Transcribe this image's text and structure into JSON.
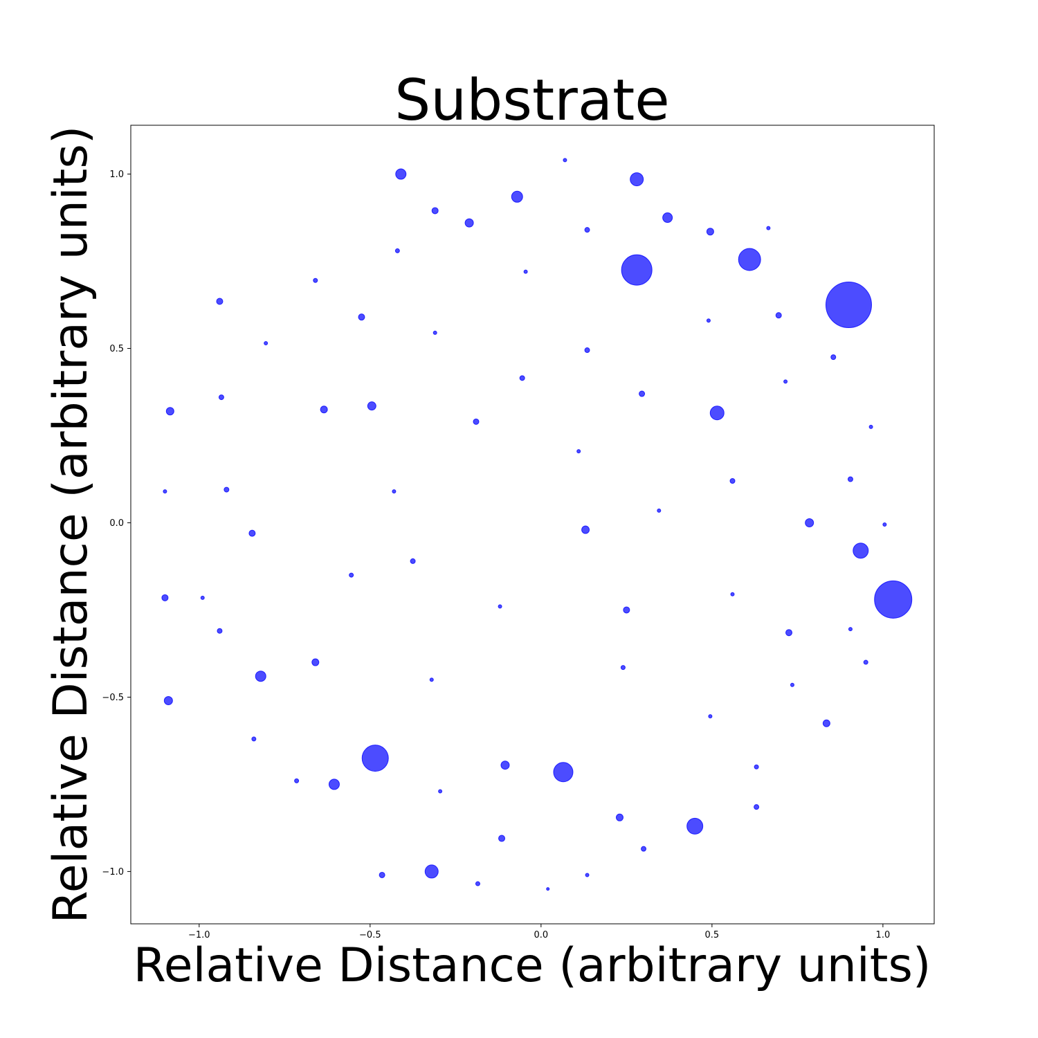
{
  "chart_data": {
    "type": "scatter",
    "title": "Substrate",
    "xlabel": "Relative Distance (arbitrary units)",
    "ylabel": "Relative Distance (arbitrary units)",
    "xlim": [
      -1.2,
      1.15
    ],
    "ylim": [
      -1.15,
      1.14
    ],
    "xticks": [
      -1.0,
      -0.5,
      0.0,
      0.5,
      1.0
    ],
    "yticks": [
      -1.0,
      -0.5,
      0.0,
      0.5,
      1.0
    ],
    "xtick_labels": [
      "−1.0",
      "−0.5",
      "0.0",
      "0.5",
      "1.0"
    ],
    "ytick_labels": [
      "−1.0",
      "−0.5",
      "0.0",
      "0.5",
      "1.0"
    ],
    "grid": false,
    "marker_color": "#0000ff",
    "marker_alpha": 0.7,
    "points": [
      {
        "x": 0.07,
        "y": 1.04,
        "r": 2.5
      },
      {
        "x": -0.41,
        "y": 1.0,
        "r": 7.5
      },
      {
        "x": 0.28,
        "y": 0.985,
        "r": 9.5
      },
      {
        "x": -0.07,
        "y": 0.935,
        "r": 8
      },
      {
        "x": -0.31,
        "y": 0.895,
        "r": 4.5
      },
      {
        "x": 0.37,
        "y": 0.875,
        "r": 7
      },
      {
        "x": -0.21,
        "y": 0.86,
        "r": 6
      },
      {
        "x": 0.135,
        "y": 0.84,
        "r": 3.5
      },
      {
        "x": 0.495,
        "y": 0.835,
        "r": 5
      },
      {
        "x": 0.665,
        "y": 0.845,
        "r": 2.5
      },
      {
        "x": -0.42,
        "y": 0.78,
        "r": 3
      },
      {
        "x": 0.61,
        "y": 0.755,
        "r": 16
      },
      {
        "x": 0.28,
        "y": 0.725,
        "r": 22
      },
      {
        "x": -0.045,
        "y": 0.72,
        "r": 2.5
      },
      {
        "x": -0.66,
        "y": 0.695,
        "r": 3
      },
      {
        "x": -0.94,
        "y": 0.635,
        "r": 4.5
      },
      {
        "x": 0.9,
        "y": 0.625,
        "r": 33
      },
      {
        "x": -0.525,
        "y": 0.59,
        "r": 4.5
      },
      {
        "x": 0.695,
        "y": 0.595,
        "r": 4
      },
      {
        "x": 0.49,
        "y": 0.58,
        "r": 2.5
      },
      {
        "x": -0.31,
        "y": 0.545,
        "r": 2.5
      },
      {
        "x": -0.805,
        "y": 0.515,
        "r": 2.5
      },
      {
        "x": 0.135,
        "y": 0.495,
        "r": 3.5
      },
      {
        "x": 0.855,
        "y": 0.475,
        "r": 3.5
      },
      {
        "x": -0.055,
        "y": 0.415,
        "r": 3.5
      },
      {
        "x": 0.715,
        "y": 0.405,
        "r": 2.5
      },
      {
        "x": 0.295,
        "y": 0.37,
        "r": 4
      },
      {
        "x": -0.935,
        "y": 0.36,
        "r": 3.5
      },
      {
        "x": -0.495,
        "y": 0.335,
        "r": 6
      },
      {
        "x": -0.635,
        "y": 0.325,
        "r": 5
      },
      {
        "x": -1.085,
        "y": 0.32,
        "r": 5.5
      },
      {
        "x": 0.515,
        "y": 0.315,
        "r": 10
      },
      {
        "x": -0.19,
        "y": 0.29,
        "r": 4
      },
      {
        "x": 0.965,
        "y": 0.275,
        "r": 2.5
      },
      {
        "x": 0.11,
        "y": 0.205,
        "r": 2.5
      },
      {
        "x": 0.905,
        "y": 0.125,
        "r": 3.5
      },
      {
        "x": 0.56,
        "y": 0.12,
        "r": 3.5
      },
      {
        "x": -0.92,
        "y": 0.095,
        "r": 3.5
      },
      {
        "x": -1.1,
        "y": 0.09,
        "r": 2.5
      },
      {
        "x": -0.43,
        "y": 0.09,
        "r": 2.5
      },
      {
        "x": 0.345,
        "y": 0.035,
        "r": 2.5
      },
      {
        "x": 0.785,
        "y": 0.0,
        "r": 6
      },
      {
        "x": 1.005,
        "y": -0.005,
        "r": 2.5
      },
      {
        "x": 0.13,
        "y": -0.02,
        "r": 5.5
      },
      {
        "x": -0.845,
        "y": -0.03,
        "r": 4.5
      },
      {
        "x": 0.935,
        "y": -0.08,
        "r": 11
      },
      {
        "x": -0.375,
        "y": -0.11,
        "r": 3.5
      },
      {
        "x": -0.555,
        "y": -0.15,
        "r": 3
      },
      {
        "x": 1.03,
        "y": -0.22,
        "r": 27
      },
      {
        "x": -1.1,
        "y": -0.215,
        "r": 4.5
      },
      {
        "x": -0.99,
        "y": -0.215,
        "r": 2.5
      },
      {
        "x": 0.56,
        "y": -0.205,
        "r": 2.5
      },
      {
        "x": -0.12,
        "y": -0.24,
        "r": 2.5
      },
      {
        "x": 0.25,
        "y": -0.25,
        "r": 4.5
      },
      {
        "x": -0.94,
        "y": -0.31,
        "r": 3.5
      },
      {
        "x": 0.725,
        "y": -0.315,
        "r": 4.5
      },
      {
        "x": 0.905,
        "y": -0.305,
        "r": 2.5
      },
      {
        "x": -0.66,
        "y": -0.4,
        "r": 5
      },
      {
        "x": 0.95,
        "y": -0.4,
        "r": 3
      },
      {
        "x": 0.24,
        "y": -0.415,
        "r": 3
      },
      {
        "x": -0.82,
        "y": -0.44,
        "r": 7.5
      },
      {
        "x": -0.32,
        "y": -0.45,
        "r": 2.5
      },
      {
        "x": 0.735,
        "y": -0.465,
        "r": 2.5
      },
      {
        "x": -1.09,
        "y": -0.51,
        "r": 6
      },
      {
        "x": 0.495,
        "y": -0.555,
        "r": 2.5
      },
      {
        "x": 0.835,
        "y": -0.575,
        "r": 5
      },
      {
        "x": -0.84,
        "y": -0.62,
        "r": 3
      },
      {
        "x": -0.485,
        "y": -0.675,
        "r": 19
      },
      {
        "x": -0.105,
        "y": -0.695,
        "r": 6
      },
      {
        "x": 0.63,
        "y": -0.7,
        "r": 3
      },
      {
        "x": 0.065,
        "y": -0.715,
        "r": 14
      },
      {
        "x": -0.715,
        "y": -0.74,
        "r": 3
      },
      {
        "x": -0.605,
        "y": -0.75,
        "r": 7.5
      },
      {
        "x": -0.295,
        "y": -0.77,
        "r": 2.5
      },
      {
        "x": 0.63,
        "y": -0.815,
        "r": 3.5
      },
      {
        "x": 0.23,
        "y": -0.845,
        "r": 5
      },
      {
        "x": 0.45,
        "y": -0.87,
        "r": 11.5
      },
      {
        "x": -0.115,
        "y": -0.905,
        "r": 4.5
      },
      {
        "x": 0.3,
        "y": -0.935,
        "r": 3.5
      },
      {
        "x": -0.32,
        "y": -1.0,
        "r": 9.5
      },
      {
        "x": -0.465,
        "y": -1.01,
        "r": 4
      },
      {
        "x": 0.135,
        "y": -1.01,
        "r": 2.5
      },
      {
        "x": -0.185,
        "y": -1.035,
        "r": 3
      },
      {
        "x": 0.02,
        "y": -1.05,
        "r": 2
      }
    ]
  }
}
